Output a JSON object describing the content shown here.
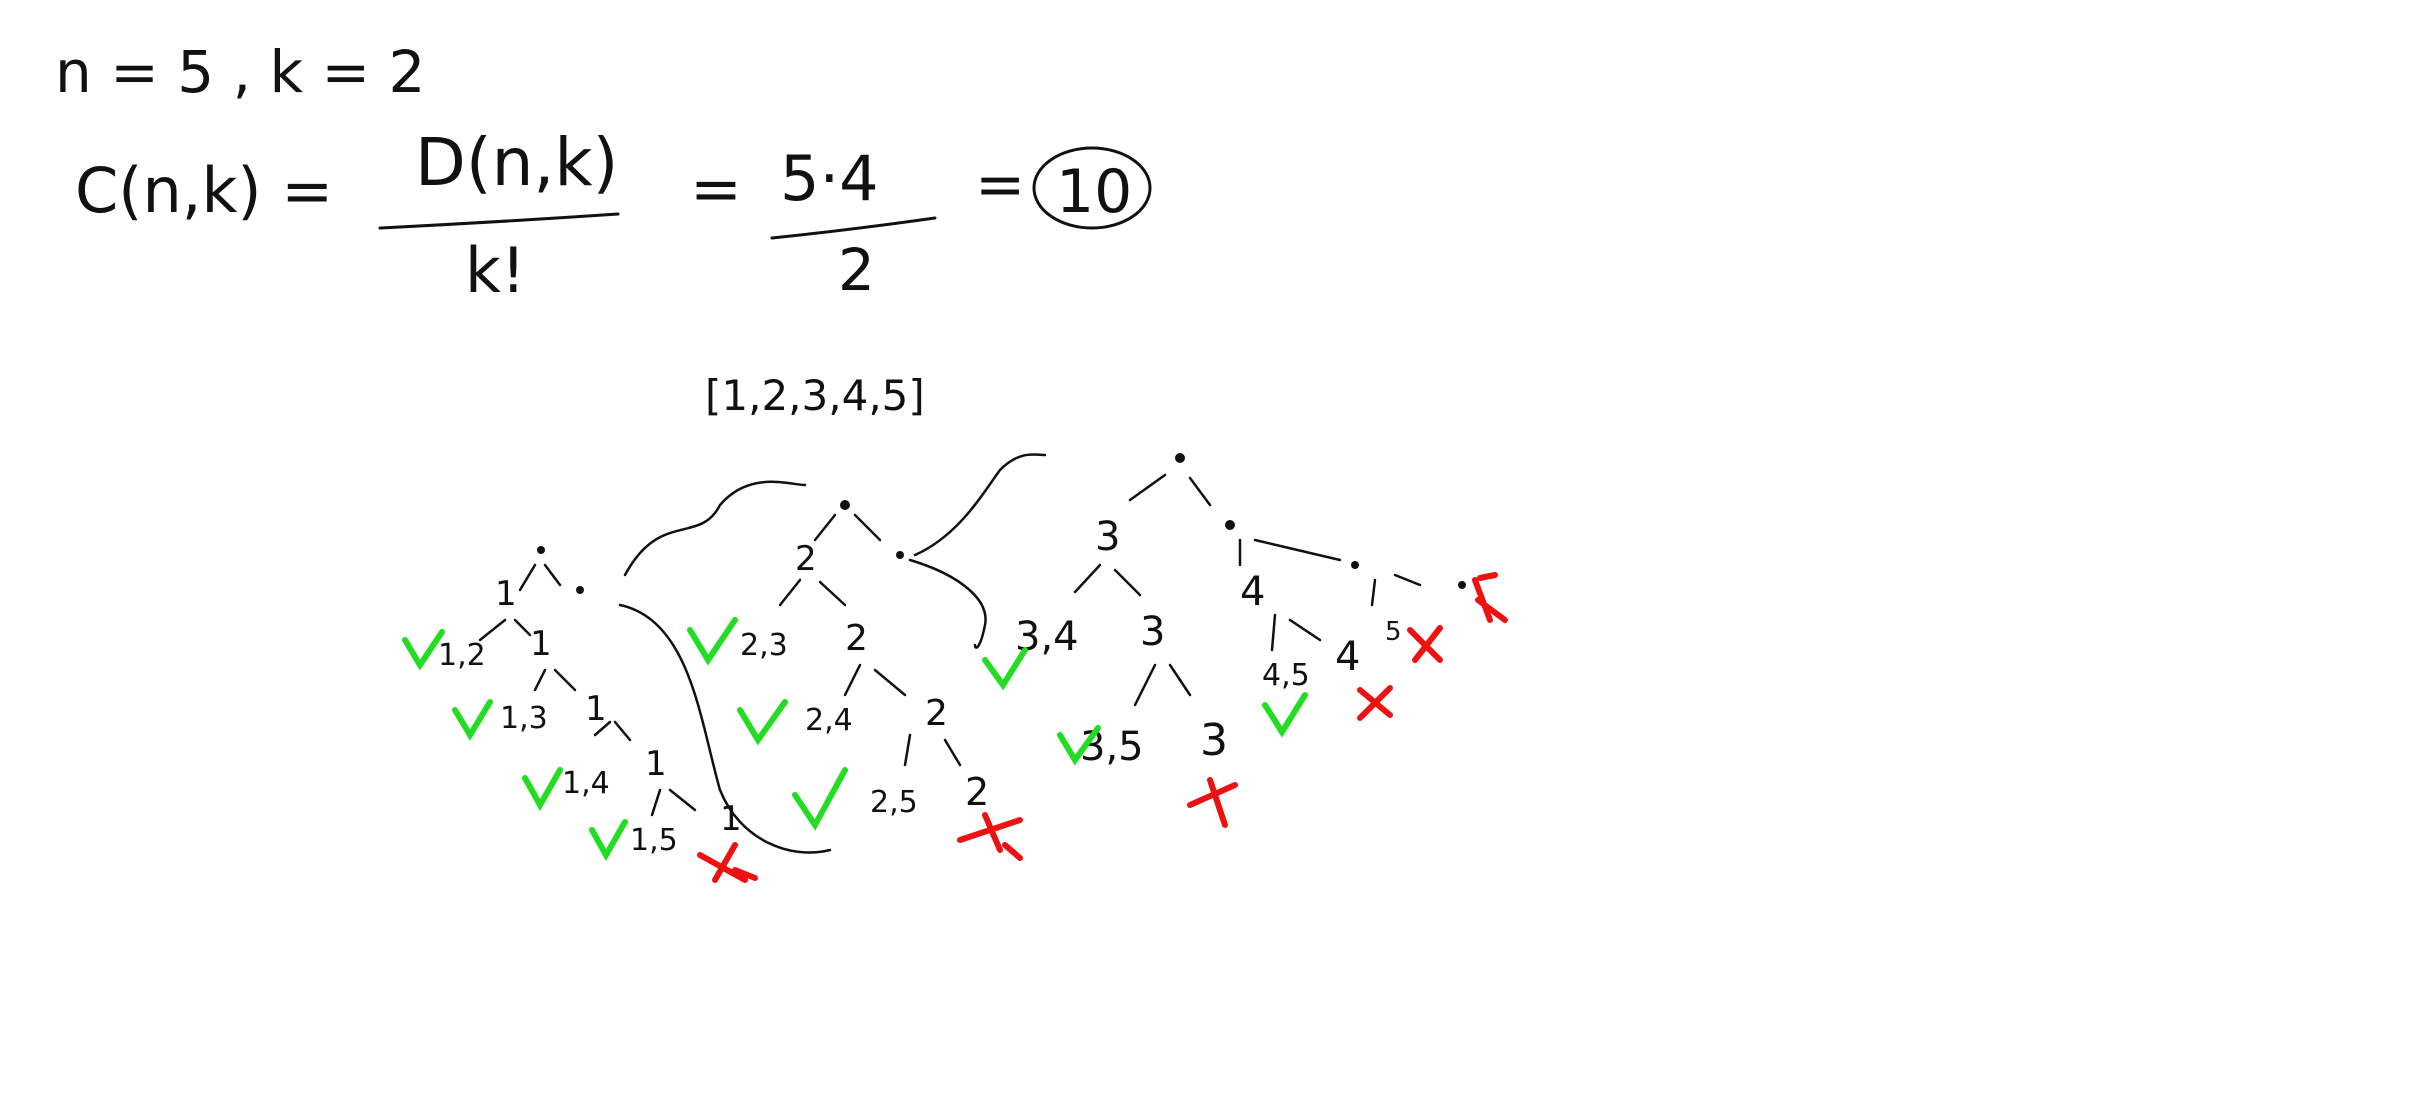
{
  "colors": {
    "ink": "#111111",
    "check": "#22dd22",
    "cross": "#ee1111",
    "background": "#ffffff"
  },
  "header": {
    "params": "n = 5 , k = 2",
    "lhs": "C(n,k) =",
    "frac1_num": "D(n,k)",
    "frac1_den": "k!",
    "eq2": "=",
    "frac2_num": "5·4",
    "frac2_den": "2",
    "eq3": "=",
    "result": "10"
  },
  "input_array": "[1,2,3,4,5]",
  "tree": {
    "branch1": {
      "digit": "1",
      "path": [
        "1",
        "1",
        "1",
        "1"
      ],
      "pairs": [
        {
          "label": "1,2",
          "status": "check"
        },
        {
          "label": "1,3",
          "status": "check"
        },
        {
          "label": "1,4",
          "status": "check"
        },
        {
          "label": "1,5",
          "status": "check"
        }
      ]
    },
    "branch2": {
      "digit": "2",
      "path": [
        "2",
        "2",
        "2"
      ],
      "pairs": [
        {
          "label": "2,3",
          "status": "check"
        },
        {
          "label": "2,4",
          "status": "check"
        },
        {
          "label": "2,5",
          "status": "check"
        }
      ]
    },
    "branch3": {
      "digit": "3",
      "path": [
        "3",
        "3"
      ],
      "pairs": [
        {
          "label": "3,4",
          "status": "check"
        },
        {
          "label": "3,5",
          "status": "check"
        }
      ]
    },
    "branch4": {
      "digit": "4",
      "path": [
        "4"
      ],
      "pairs": [
        {
          "label": "4,5",
          "status": "check"
        }
      ]
    },
    "branch5": {
      "digit": "5"
    }
  }
}
